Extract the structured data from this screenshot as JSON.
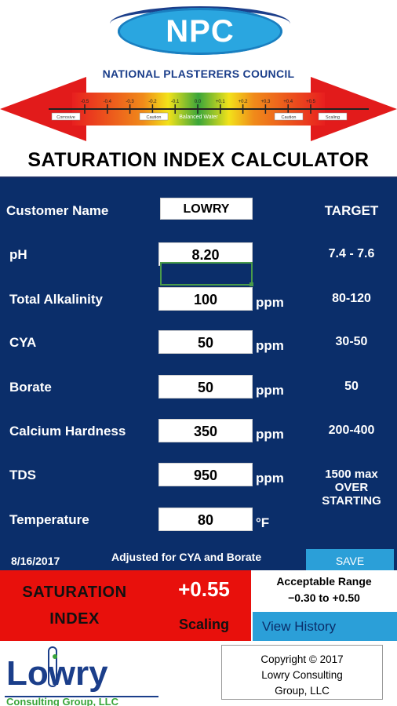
{
  "header": {
    "logo_text": "NPC",
    "council_name": "NATIONAL PLASTERERS COUNCIL",
    "scale": {
      "ticks": [
        "-0.5",
        "-0.4",
        "-0.3",
        "-0.2",
        "-0.1",
        "0.0",
        "+0.1",
        "+0.2",
        "+0.3",
        "+0.4",
        "+0.5"
      ],
      "zones": [
        "Corrosive",
        "Caution",
        "Balanced Water",
        "Caution",
        "Scaling"
      ]
    },
    "title": "SATURATION INDEX CALCULATOR"
  },
  "form": {
    "target_heading": "TARGET",
    "customer": {
      "label": "Customer Name",
      "value": "LOWRY"
    },
    "rows": [
      {
        "label": "pH",
        "value": "8.20",
        "unit": "",
        "target": "7.4 - 7.6"
      },
      {
        "label": "Total Alkalinity",
        "value": "100",
        "unit": "ppm",
        "target": "80-120"
      },
      {
        "label": "CYA",
        "value": "50",
        "unit": "ppm",
        "target": "30-50"
      },
      {
        "label": "Borate",
        "value": "50",
        "unit": "ppm",
        "target": "50"
      },
      {
        "label": "Calcium Hardness",
        "value": "350",
        "unit": "ppm",
        "target": "200-400"
      },
      {
        "label": "TDS",
        "value": "950",
        "unit": "ppm",
        "target_lines": [
          "1500 max",
          "OVER",
          "STARTING"
        ]
      },
      {
        "label": "Temperature",
        "value": "80",
        "unit": "°F",
        "target": ""
      }
    ]
  },
  "footer_row": {
    "date": "8/16/2017",
    "adjusted_note": "Adjusted for CYA and Borate",
    "save_label": "SAVE"
  },
  "result": {
    "label_lines": [
      "SATURATION",
      "INDEX"
    ],
    "value": "+0.55",
    "status": "Scaling",
    "acceptable_title": "Acceptable Range",
    "acceptable_range": "−0.30 to +0.50",
    "history_label": "View History",
    "colors": {
      "alert": "#e8100c",
      "panel": "#0b2e6a",
      "button": "#2b9fd8"
    }
  },
  "brand": {
    "name": "Lowry",
    "subtitle": "Consulting Group, LLC",
    "copyright_lines": [
      "Copyright © 2017",
      "Lowry Consulting",
      "Group, LLC"
    ]
  }
}
